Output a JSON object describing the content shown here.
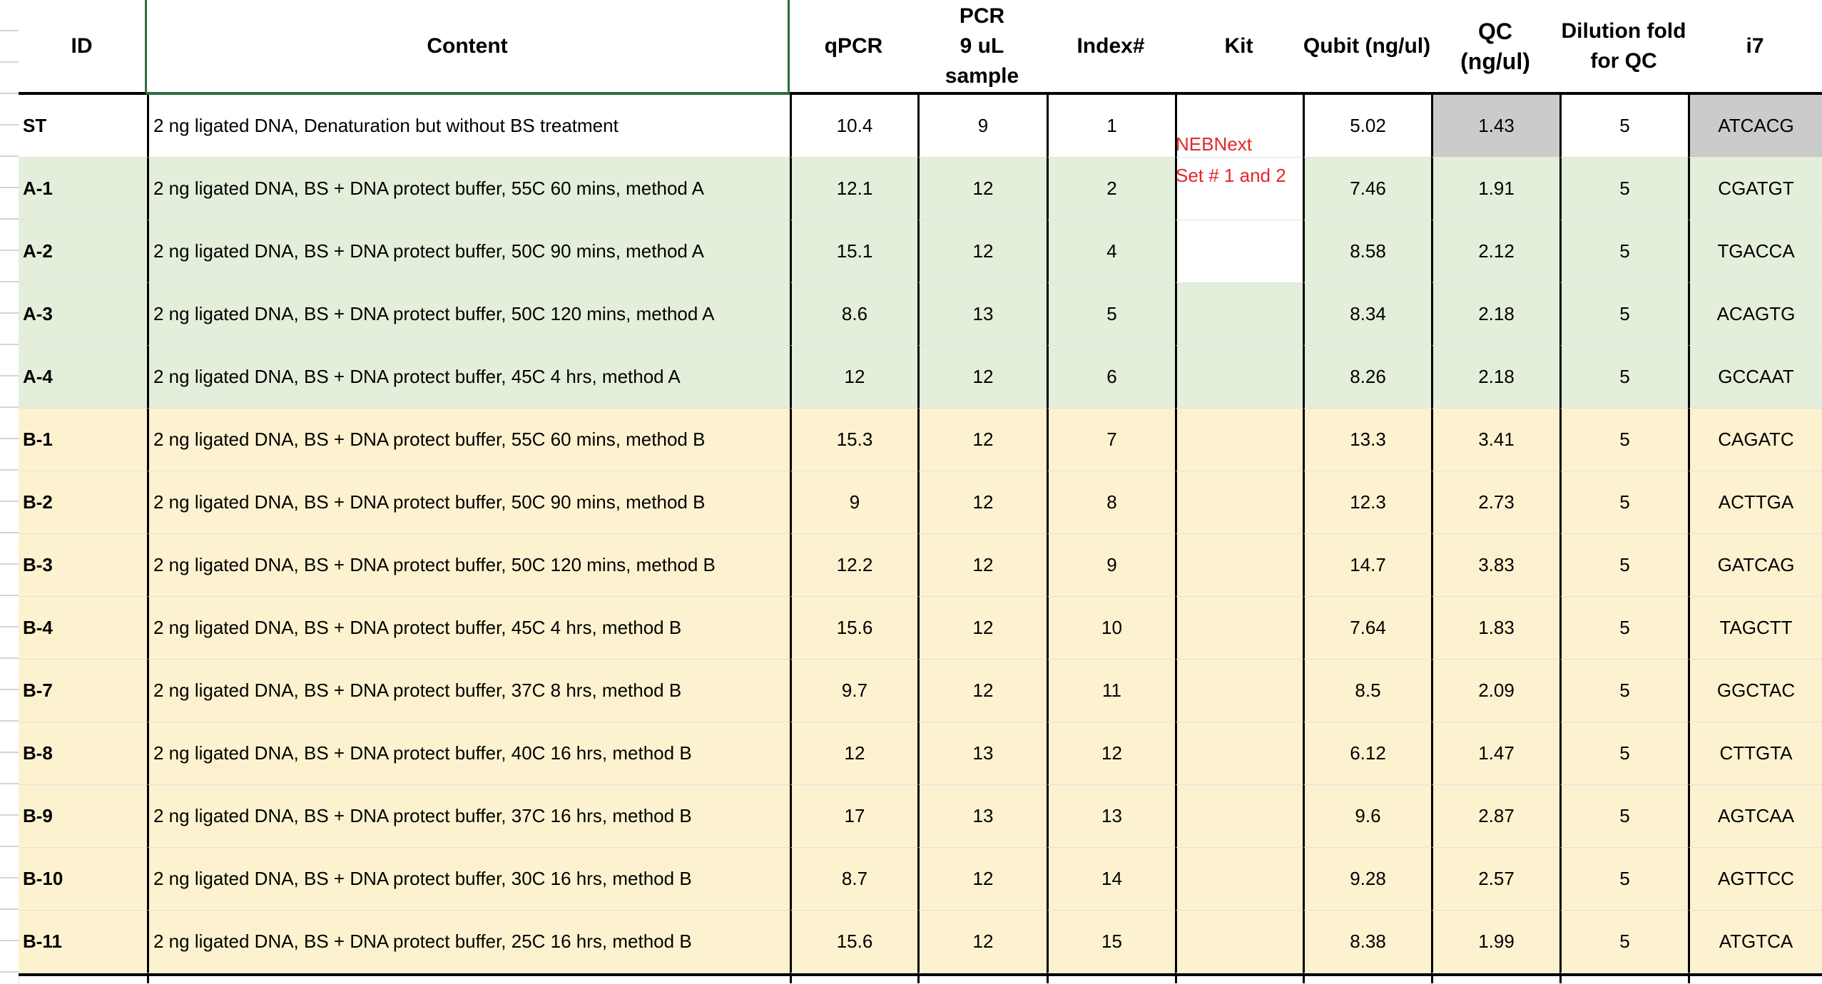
{
  "headers": {
    "id": "ID",
    "content": "Content",
    "qpcr": "qPCR",
    "pcr_l1": "PCR",
    "pcr_l2": "9 uL",
    "pcr_l3": "sample",
    "index": "Index#",
    "kit": "Kit",
    "qubit": "Qubit (ng/ul)",
    "qc_l1": "QC",
    "qc_l2": "(ng/ul)",
    "dilution_l1": "Dilution fold",
    "dilution_l2": "for QC",
    "i7": "i7"
  },
  "kit_note": {
    "line1": "NEBNext",
    "line2": "Set # 1 and 2",
    "color": "#e4262b"
  },
  "colors": {
    "group_st": "#ffffff",
    "group_a": "#e3efda",
    "group_b": "#fdf2cf",
    "highlight_gray": "#cbcbcb"
  },
  "rows": [
    {
      "id": "ST",
      "content": "2 ng ligated DNA,  Denaturation but without BS treatment",
      "qpcr": "10.4",
      "pcr": "9",
      "index": "1",
      "qubit": "5.02",
      "qc": "1.43",
      "dilution": "5",
      "i7": "ATCACG",
      "group": "st"
    },
    {
      "id": "A-1",
      "content": "2 ng ligated DNA, BS + DNA protect buffer, 55C 60 mins, method A",
      "qpcr": "12.1",
      "pcr": "12",
      "index": "2",
      "qubit": "7.46",
      "qc": "1.91",
      "dilution": "5",
      "i7": "CGATGT",
      "group": "a"
    },
    {
      "id": "A-2",
      "content": "2 ng ligated DNA, BS + DNA protect buffer, 50C 90 mins, method A",
      "qpcr": "15.1",
      "pcr": "12",
      "index": "4",
      "qubit": "8.58",
      "qc": "2.12",
      "dilution": "5",
      "i7": "TGACCA",
      "group": "a"
    },
    {
      "id": "A-3",
      "content": "2 ng ligated DNA, BS + DNA protect buffer, 50C 120 mins, method A",
      "qpcr": "8.6",
      "pcr": "13",
      "index": "5",
      "qubit": "8.34",
      "qc": "2.18",
      "dilution": "5",
      "i7": "ACAGTG",
      "group": "a"
    },
    {
      "id": "A-4",
      "content": "2 ng ligated DNA, BS + DNA protect buffer, 45C 4 hrs, method A",
      "qpcr": "12",
      "pcr": "12",
      "index": "6",
      "qubit": "8.26",
      "qc": "2.18",
      "dilution": "5",
      "i7": "GCCAAT",
      "group": "a"
    },
    {
      "id": "B-1",
      "content": "2 ng ligated DNA, BS + DNA protect buffer, 55C 60 mins, method B",
      "qpcr": "15.3",
      "pcr": "12",
      "index": "7",
      "qubit": "13.3",
      "qc": "3.41",
      "dilution": "5",
      "i7": "CAGATC",
      "group": "b"
    },
    {
      "id": "B-2",
      "content": "2 ng ligated DNA, BS + DNA protect buffer, 50C 90 mins, method B",
      "qpcr": "9",
      "pcr": "12",
      "index": "8",
      "qubit": "12.3",
      "qc": "2.73",
      "dilution": "5",
      "i7": "ACTTGA",
      "group": "b"
    },
    {
      "id": "B-3",
      "content": "2 ng ligated DNA, BS + DNA protect buffer, 50C 120 mins, method B",
      "qpcr": "12.2",
      "pcr": "12",
      "index": "9",
      "qubit": "14.7",
      "qc": "3.83",
      "dilution": "5",
      "i7": "GATCAG",
      "group": "b"
    },
    {
      "id": "B-4",
      "content": "2 ng ligated DNA, BS + DNA protect buffer, 45C 4 hrs, method B",
      "qpcr": "15.6",
      "pcr": "12",
      "index": "10",
      "qubit": "7.64",
      "qc": "1.83",
      "dilution": "5",
      "i7": "TAGCTT",
      "group": "b"
    },
    {
      "id": "B-7",
      "content": "2 ng ligated DNA, BS + DNA protect buffer, 37C 8 hrs, method B",
      "qpcr": "9.7",
      "pcr": "12",
      "index": "11",
      "qubit": "8.5",
      "qc": "2.09",
      "dilution": "5",
      "i7": "GGCTAC",
      "group": "b"
    },
    {
      "id": "B-8",
      "content": "2 ng ligated DNA, BS + DNA protect buffer, 40C 16 hrs, method B",
      "qpcr": "12",
      "pcr": "13",
      "index": "12",
      "qubit": "6.12",
      "qc": "1.47",
      "dilution": "5",
      "i7": "CTTGTA",
      "group": "b"
    },
    {
      "id": "B-9",
      "content": "2 ng ligated DNA, BS + DNA protect buffer, 37C 16 hrs, method B",
      "qpcr": "17",
      "pcr": "13",
      "index": "13",
      "qubit": "9.6",
      "qc": "2.87",
      "dilution": "5",
      "i7": "AGTCAA",
      "group": "b"
    },
    {
      "id": "B-10",
      "content": "2 ng ligated DNA, BS + DNA protect buffer, 30C 16 hrs, method B",
      "qpcr": "8.7",
      "pcr": "12",
      "index": "14",
      "qubit": "9.28",
      "qc": "2.57",
      "dilution": "5",
      "i7": "AGTTCC",
      "group": "b"
    },
    {
      "id": "B-11",
      "content": "2 ng ligated DNA, BS + DNA protect buffer, 25C 16 hrs, method B",
      "qpcr": "15.6",
      "pcr": "12",
      "index": "15",
      "qubit": "8.38",
      "qc": "1.99",
      "dilution": "5",
      "i7": "ATGTCA",
      "group": "b"
    }
  ]
}
